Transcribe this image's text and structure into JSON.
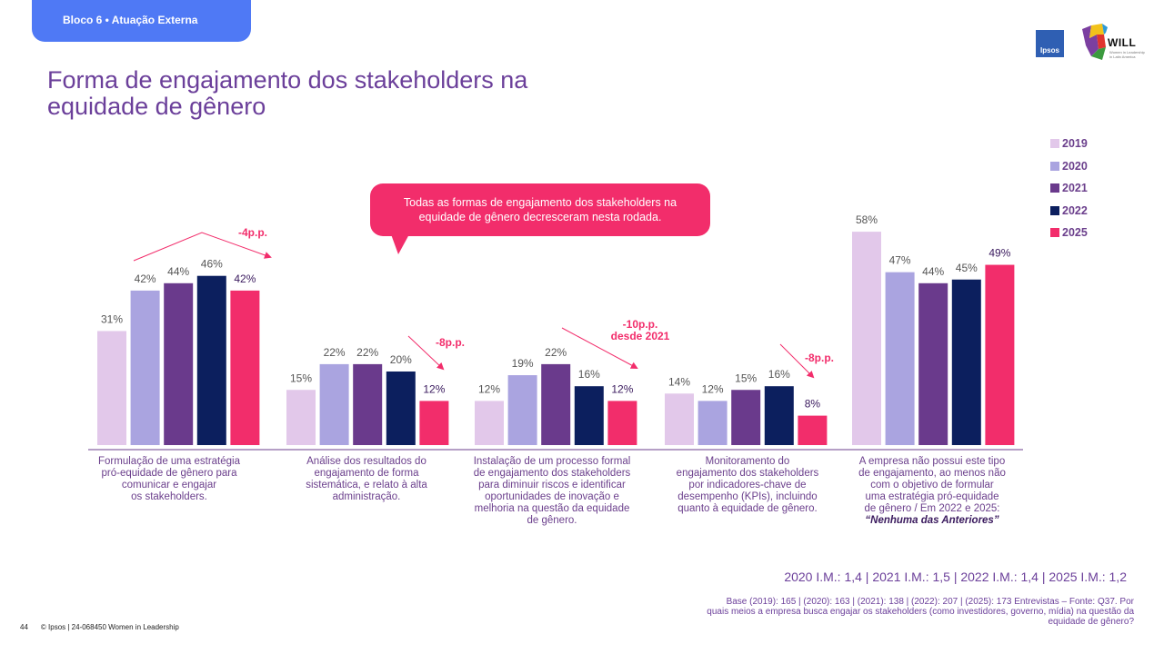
{
  "header": {
    "section_tab": "Bloco 6 • Atuação Externa",
    "ipsos_logo": "Ipsos",
    "will_logo": "WILL",
    "will_tagline": "Women in Leadership in Latin America"
  },
  "title": "Forma de engajamento dos stakeholders na equidade de gênero",
  "callout": "Todas as formas de engajamento dos stakeholders na equidade de gênero decresceram nesta rodada.",
  "colors": {
    "2019": "#e2c8ea",
    "2020": "#aaa4e0",
    "2021": "#6a3a8c",
    "2022": "#0c1f5e",
    "2025": "#f22d6b",
    "accent": "#f22d6b",
    "text": "#6b3f8c"
  },
  "chart_data": {
    "type": "bar",
    "title": "Forma de engajamento dos stakeholders na equidade de gênero",
    "ylim": [
      0,
      60
    ],
    "series_names": [
      "2019",
      "2020",
      "2021",
      "2022",
      "2025"
    ],
    "legend_position": "top-right",
    "categories": [
      {
        "label_lines": [
          "Formulação de uma estratégia",
          "pró-equidade de gênero para",
          "comunicar e engajar",
          "os stakeholders."
        ],
        "values": [
          31,
          42,
          44,
          46,
          42
        ],
        "value_labels": [
          "31%",
          "42%",
          "44%",
          "46%",
          "42%"
        ]
      },
      {
        "label_lines": [
          "Análise dos resultados do",
          "engajamento de forma",
          "sistemática, e relato à alta",
          "administração."
        ],
        "values": [
          15,
          22,
          22,
          20,
          12
        ],
        "value_labels": [
          "15%",
          "22%",
          "22%",
          "20%",
          "12%"
        ]
      },
      {
        "label_lines": [
          "Instalação de um processo formal",
          "de engajamento dos stakeholders",
          "para diminuir riscos e identificar",
          "oportunidades de inovação e",
          "melhoria na questão da equidade",
          "de gênero."
        ],
        "values": [
          12,
          19,
          22,
          16,
          12
        ],
        "value_labels": [
          "12%",
          "19%",
          "22%",
          "16%",
          "12%"
        ]
      },
      {
        "label_lines": [
          "Monitoramento do",
          "engajamento dos stakeholders",
          "por indicadores-chave de",
          "desempenho (KPIs), incluindo",
          "quanto à equidade de gênero."
        ],
        "values": [
          14,
          12,
          15,
          16,
          8
        ],
        "value_labels": [
          "14%",
          "12%",
          "15%",
          "16%",
          "8%"
        ]
      },
      {
        "label_lines": [
          "A empresa não possui este tipo",
          "de engajamento, ao menos não",
          "com o objetivo de formular",
          "uma estratégia pró-equidade",
          "de gênero / Em 2022 e 2025:"
        ],
        "label_emphasis": "“Nenhuma das Anteriores”",
        "values": [
          58,
          47,
          44,
          45,
          49
        ],
        "value_labels": [
          "58%",
          "47%",
          "44%",
          "45%",
          "49%"
        ]
      }
    ],
    "annotations": [
      "-4p.p.",
      "-8p.p.",
      "-10p.p.",
      "desde 2021",
      "-8p.p."
    ]
  },
  "im_line": "2020 I.M.: 1,4 | 2021 I.M.: 1,5 | 2022 I.M.: 1,4 | 2025 I.M.: 1,2",
  "base_note": "Base (2019): 165 | (2020): 163  | (2021): 138 | (2022): 207 | (2025): 173  Entrevistas – Fonte: Q37. Por quais meios a empresa busca engajar os stakeholders (como investidores, governo, mídia) na questão da equidade de gênero?",
  "footer": {
    "page_number": "44",
    "copyright": "© Ipsos | 24-068450 Women in Leadership"
  }
}
